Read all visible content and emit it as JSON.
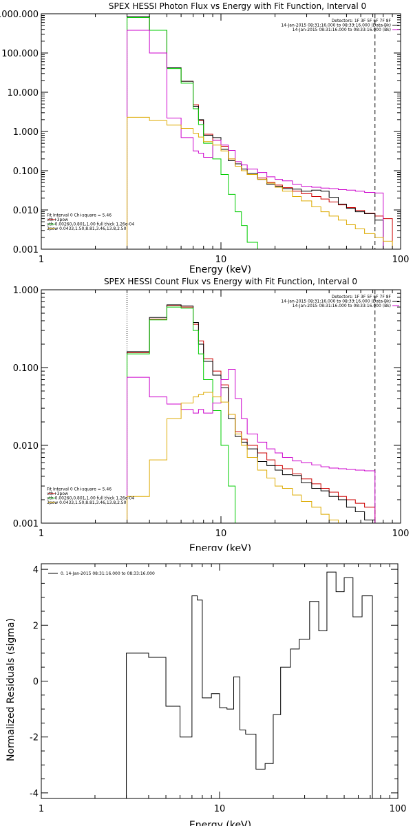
{
  "chart_data": [
    {
      "type": "line",
      "title": "SPEX HESSI Photon Flux vs Energy with Fit Function, Interval 0",
      "xlabel": "Energy (keV)",
      "ylabel": "",
      "xscale": "log",
      "yscale": "log",
      "xlim": [
        1,
        100
      ],
      "ylim": [
        0.001,
        1000
      ],
      "xticks": [
        "1",
        "10",
        "100"
      ],
      "yticks": [
        "1000.000",
        "100.000",
        "10.000",
        "1.000",
        "0.100",
        "0.010",
        "0.001"
      ],
      "ytick_values": [
        1000,
        100,
        10,
        1,
        0.1,
        0.01,
        0.001
      ],
      "legend_topright": [
        {
          "text": "Detectors: 1F 3F 5F 6F 7F 8F",
          "color": ""
        },
        {
          "text": "14-Jan-2015 08:31:16.000 to 08:33:16.000 (Data-Bk)",
          "color": "#000000"
        },
        {
          "text": "14-Jan-2015 08:31:16.000 to 08:33:16.000 (Bk)",
          "color": "#cc00cc"
        }
      ],
      "legend_bottomleft": [
        {
          "text": "Fit Interval 0   Chi-square = 5.46",
          "color": ""
        },
        {
          "text": "vth+3pow",
          "color": "#cc0000"
        },
        {
          "text": "vth 0.00260,0.801,1.00  full thick 1.26e-04",
          "color": "#00cc00"
        },
        {
          "text": "3pow 0.0433,1.50,8.81,3.46,13.8,2.50",
          "color": "#ddaa00"
        }
      ],
      "edges": [
        3,
        4,
        5,
        6,
        7,
        7.5,
        8,
        9,
        10,
        11,
        12,
        13,
        14,
        16,
        18,
        20,
        22,
        25,
        28,
        32,
        36,
        40,
        45,
        50,
        56,
        63,
        72,
        80,
        90
      ],
      "series": [
        {
          "name": "vth+3pow",
          "color": "#cc0000",
          "values": [
            850,
            380,
            42,
            19,
            4.8,
            1.9,
            0.85,
            0.6,
            0.42,
            0.2,
            0.13,
            0.1,
            0.08,
            0.065,
            0.05,
            0.043,
            0.037,
            0.03,
            0.026,
            0.022,
            0.019,
            0.016,
            0.0135,
            0.0115,
            0.0097,
            0.0082,
            0.007,
            0.006
          ]
        },
        {
          "color": "#000000",
          "values": [
            850,
            380,
            42,
            19,
            4.4,
            2.0,
            0.8,
            0.7,
            0.35,
            0.18,
            0.15,
            0.11,
            0.085,
            0.06,
            0.045,
            0.04,
            0.035,
            0.034,
            0.03,
            0.032,
            0.03,
            0.021,
            0.014,
            0.011,
            0.009,
            0.008,
            0.0055
          ]
        },
        {
          "color": "#00cc00",
          "values": [
            800,
            380,
            40,
            17,
            3.8,
            1.5,
            0.5,
            0.2,
            0.08,
            0.025,
            0.009,
            0.004,
            0.0015
          ]
        },
        {
          "color": "#cc00cc",
          "values": [
            380,
            100,
            2.2,
            0.7,
            0.32,
            0.28,
            0.22,
            0.6,
            0.45,
            0.33,
            0.17,
            0.14,
            0.11,
            0.09,
            0.07,
            0.06,
            0.055,
            0.045,
            0.04,
            0.038,
            0.036,
            0.035,
            0.033,
            0.032,
            0.03,
            0.028,
            0.027
          ]
        },
        {
          "color": "#ddaa00",
          "values": [
            2.3,
            1.9,
            1.45,
            1.2,
            0.9,
            0.72,
            0.55,
            0.45,
            0.32,
            0.2,
            0.13,
            0.1,
            0.08,
            0.06,
            0.048,
            0.038,
            0.03,
            0.022,
            0.017,
            0.012,
            0.009,
            0.007,
            0.0055,
            0.0042,
            0.0033,
            0.0025,
            0.002,
            0.0016,
            0.0012,
            0.001
          ]
        }
      ],
      "vlines": [
        {
          "x": 3,
          "style": "dotted"
        },
        {
          "x": 72,
          "style": "dashed"
        }
      ]
    },
    {
      "type": "line",
      "title": "SPEX HESSI Count Flux vs Energy with Fit Function, Interval 0",
      "xlabel": "Energy (keV)",
      "ylabel": "",
      "xscale": "log",
      "yscale": "log",
      "xlim": [
        1,
        100
      ],
      "ylim": [
        0.001,
        1
      ],
      "xticks": [
        "1",
        "10",
        "100"
      ],
      "yticks": [
        "1.000",
        "0.100",
        "0.010",
        "0.001"
      ],
      "ytick_values": [
        1,
        0.1,
        0.01,
        0.001
      ],
      "legend_topright": [
        {
          "text": "Detectors: 1F 3F 5F 6F 7F 8F",
          "color": ""
        },
        {
          "text": "14-Jan-2015 08:31:16.000 to 08:33:16.000 (Data-Bk)",
          "color": "#000000"
        },
        {
          "text": "14-Jan-2015 08:31:16.000 to 08:33:16.000 (Bk)",
          "color": "#cc00cc"
        }
      ],
      "legend_bottomleft": [
        {
          "text": "Fit Interval 0   Chi-square = 5.46",
          "color": ""
        },
        {
          "text": "vth+3pow",
          "color": "#cc0000"
        },
        {
          "text": "vth 0.00260,0.801,1.00  full thick 1.26e-04",
          "color": "#00cc00"
        },
        {
          "text": "3pow 0.0433,1.50,8.81,3.46,13.8,2.50",
          "color": "#ddaa00"
        }
      ],
      "edges": [
        3,
        4,
        5,
        6,
        7,
        7.5,
        8,
        9,
        10,
        11,
        12,
        13,
        14,
        16,
        18,
        20,
        22,
        25,
        28,
        32,
        36,
        40,
        45,
        50,
        56,
        63,
        72
      ],
      "series": [
        {
          "name": "vth+3pow",
          "color": "#cc0000",
          "values": [
            0.155,
            0.42,
            0.63,
            0.6,
            0.36,
            0.22,
            0.13,
            0.09,
            0.06,
            0.025,
            0.015,
            0.012,
            0.01,
            0.008,
            0.0065,
            0.0055,
            0.005,
            0.0043,
            0.0037,
            0.0032,
            0.0028,
            0.0025,
            0.0022,
            0.002,
            0.0018,
            0.0016
          ]
        },
        {
          "color": "#000000",
          "values": [
            0.16,
            0.44,
            0.64,
            0.62,
            0.38,
            0.2,
            0.12,
            0.08,
            0.055,
            0.022,
            0.013,
            0.011,
            0.009,
            0.0062,
            0.0055,
            0.0048,
            0.0042,
            0.0041,
            0.0033,
            0.0028,
            0.0026,
            0.0022,
            0.002,
            0.0016,
            0.0014,
            0.0011
          ]
        },
        {
          "color": "#00cc00",
          "values": [
            0.15,
            0.41,
            0.6,
            0.58,
            0.3,
            0.15,
            0.07,
            0.028,
            0.01,
            0.003,
            0.0009
          ]
        },
        {
          "color": "#cc00cc",
          "values": [
            0.075,
            0.042,
            0.034,
            0.029,
            0.026,
            0.029,
            0.026,
            0.035,
            0.07,
            0.095,
            0.04,
            0.022,
            0.014,
            0.011,
            0.009,
            0.008,
            0.007,
            0.0063,
            0.006,
            0.0056,
            0.0053,
            0.0051,
            0.005,
            0.0049,
            0.0048,
            0.0047
          ]
        },
        {
          "color": "#ddaa00",
          "values": [
            0.0022,
            0.0065,
            0.022,
            0.035,
            0.042,
            0.045,
            0.048,
            0.042,
            0.036,
            0.025,
            0.014,
            0.01,
            0.007,
            0.0048,
            0.0038,
            0.003,
            0.0028,
            0.0023,
            0.0019,
            0.0016,
            0.0013,
            0.0011,
            0.001
          ]
        }
      ],
      "vlines": [
        {
          "x": 3,
          "style": "dotted"
        },
        {
          "x": 72,
          "style": "dashed"
        }
      ]
    },
    {
      "type": "line",
      "title": "",
      "xlabel": "Energy (keV)",
      "ylabel": "Normalized Residuals (sigma)",
      "xscale": "log",
      "yscale": "linear",
      "xlim": [
        1,
        100
      ],
      "ylim": [
        -4.2,
        4.2
      ],
      "xticks": [
        "1",
        "10",
        "100"
      ],
      "yticks": [
        "4",
        "2",
        "0",
        "-2",
        "-4"
      ],
      "ytick_values": [
        4,
        2,
        0,
        -2,
        -4
      ],
      "legend_topleft": [
        {
          "text": "0. 14-Jan-2015 08:31:16.000 to 08:33:16.000",
          "color": "#000000"
        }
      ],
      "edges": [
        3,
        4,
        5,
        6,
        7,
        7.5,
        8,
        9,
        10,
        11,
        12,
        13,
        14,
        16,
        18,
        20,
        22,
        25,
        28,
        32,
        36,
        40,
        45,
        50,
        56,
        63,
        72
      ],
      "series": [
        {
          "color": "#000000",
          "values": [
            1.0,
            0.85,
            -0.9,
            -2.0,
            3.05,
            2.9,
            -0.6,
            -0.45,
            -0.95,
            -1.0,
            0.15,
            -1.75,
            -1.9,
            -3.15,
            -2.95,
            -1.2,
            0.5,
            1.15,
            1.5,
            2.85,
            1.8,
            3.9,
            3.2,
            3.7,
            2.3,
            3.05,
            2.3
          ]
        }
      ]
    }
  ]
}
